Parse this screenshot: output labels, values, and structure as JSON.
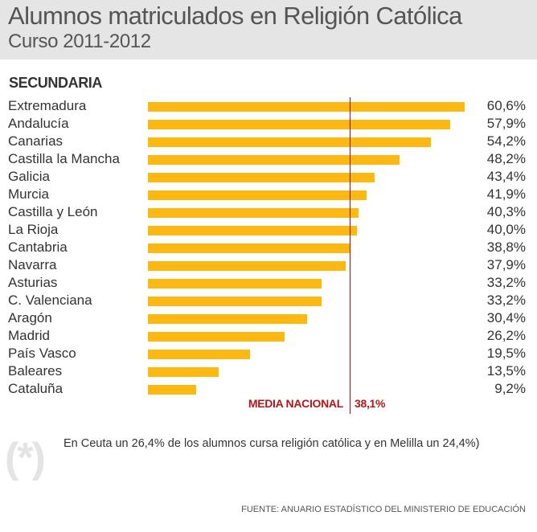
{
  "header": {
    "title_bold": "Alumnos matriculados",
    "title_rest": "en Religión Católica",
    "subtitle": "Curso 2011-2012"
  },
  "chart_data": {
    "type": "bar",
    "orientation": "horizontal",
    "title": "Alumnos matriculados en Religión Católica",
    "subtitle": "Curso 2011-2012",
    "section": "SECUNDARIA",
    "categories": [
      "Extremadura",
      "Andalucía",
      "Canarias",
      "Castilla la Mancha",
      "Galicia",
      "Murcia",
      "Castilla y León",
      "La Rioja",
      "Cantabria",
      "Navarra",
      "Asturias",
      "C. Valenciana",
      "Aragón",
      "Madrid",
      "País Vasco",
      "Baleares",
      "Cataluña"
    ],
    "values": [
      60.6,
      57.9,
      54.2,
      48.2,
      43.4,
      41.9,
      40.3,
      40.0,
      38.8,
      37.9,
      33.2,
      33.2,
      30.4,
      26.2,
      19.5,
      13.5,
      9.2
    ],
    "value_labels": [
      "60,6%",
      "57,9%",
      "54,2%",
      "48,2%",
      "43,4%",
      "41,9%",
      "40,3%",
      "40,0%",
      "38,8%",
      "37,9%",
      "33,2%",
      "33,2%",
      "30,4%",
      "26,2%",
      "19,5%",
      "13,5%",
      "9,2%"
    ],
    "reference_line": {
      "label": "MEDIA NACIONAL",
      "value": 38.1,
      "value_label": "38,1%"
    },
    "xlim": [
      0,
      60.6
    ],
    "bar_color": "#fdb812",
    "reference_color": "#a01010"
  },
  "note": "En Ceuta un 26,4% de los alumnos cursa religión católica y en Melilla un 24,4%)",
  "note_icon": "(*)",
  "source": "FUENTE: ANUARIO ESTADÍSTICO DEL MINISTERIO DE EDUCACIÓN"
}
